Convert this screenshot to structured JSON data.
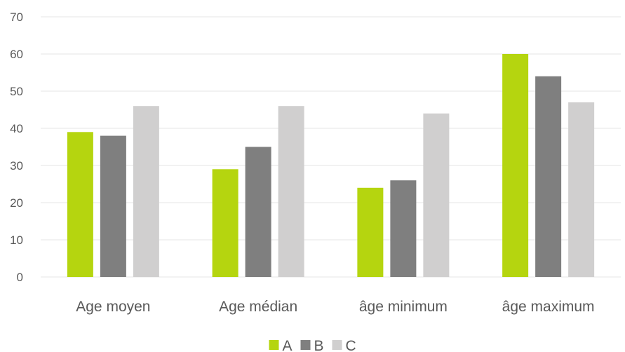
{
  "chart_data": {
    "type": "bar",
    "title": "",
    "xlabel": "",
    "ylabel": "",
    "ylim": [
      0,
      70
    ],
    "y_ticks": [
      0,
      10,
      20,
      30,
      40,
      50,
      60,
      70
    ],
    "grid": true,
    "legend_position": "bottom",
    "categories": [
      "Age moyen",
      "Age médian",
      "âge minimum",
      "âge maximum"
    ],
    "series": [
      {
        "name": "A",
        "color": "#b5d50f",
        "values": [
          39,
          29,
          24,
          60
        ]
      },
      {
        "name": "B",
        "color": "#7f7f7f",
        "values": [
          38,
          35,
          26,
          54
        ]
      },
      {
        "name": "C",
        "color": "#d0cfcf",
        "values": [
          46,
          46,
          44,
          47
        ]
      }
    ]
  }
}
